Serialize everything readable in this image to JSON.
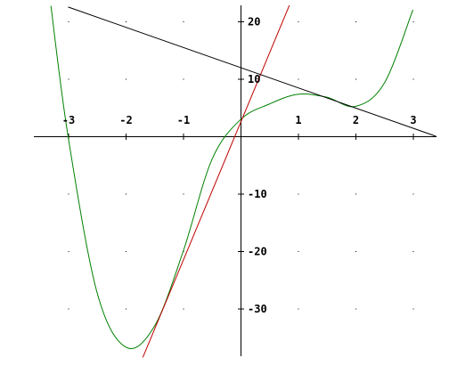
{
  "chart_data": {
    "type": "line",
    "title": "",
    "xlabel": "",
    "ylabel": "",
    "xlim": [
      -3.55,
      3.4
    ],
    "ylim": [
      -38.5,
      23.5
    ],
    "grid": "dots",
    "x_ticks": [
      {
        "value": -3,
        "label": "-3"
      },
      {
        "value": -2,
        "label": "-2"
      },
      {
        "value": -1,
        "label": "-1"
      },
      {
        "value": 1,
        "label": "1"
      },
      {
        "value": 2,
        "label": "2"
      },
      {
        "value": 3,
        "label": "3"
      }
    ],
    "y_ticks": [
      {
        "value": 20,
        "label": "20"
      },
      {
        "value": 10,
        "label": "10"
      },
      {
        "value": -10,
        "label": "-10"
      },
      {
        "value": -20,
        "label": "-20"
      },
      {
        "value": -30,
        "label": "-30"
      }
    ],
    "series": [
      {
        "kind": "curve",
        "color": "#008000",
        "x": [
          -3.3,
          -3.0,
          -2.5,
          -2.0,
          -1.5,
          -1.0,
          -0.5,
          0.0,
          0.5,
          1.0,
          1.5,
          2.0,
          2.5,
          3.0
        ],
        "y": [
          22.7,
          -0.1,
          -27.1,
          -36.7,
          -33.1,
          -20.1,
          -4.1,
          2.9,
          5.6,
          7.3,
          6.8,
          5.2,
          9.2,
          22.0
        ]
      },
      {
        "kind": "tangent-line",
        "color": "#c00000",
        "x": [
          -1.7,
          0.85
        ],
        "y": [
          -38.5,
          22.8
        ]
      },
      {
        "kind": "secant-line",
        "color": "#000000",
        "x": [
          -3.0,
          3.4
        ],
        "y": [
          22.5,
          0.0
        ]
      }
    ]
  }
}
